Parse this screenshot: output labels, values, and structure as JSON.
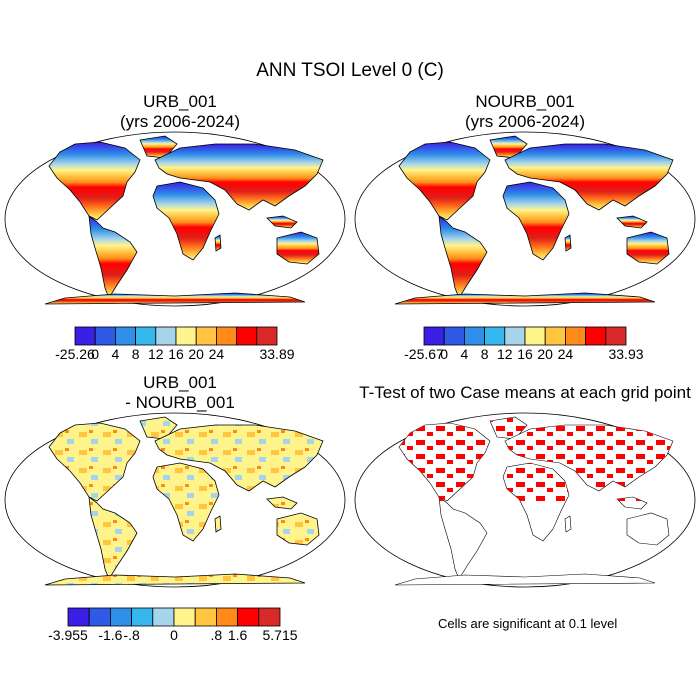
{
  "title": "ANN TSOI Level 0 (C)",
  "panels": [
    {
      "line1": "URB_001",
      "line2": "(yrs 2006-2024)"
    },
    {
      "line1": "NOURB_001",
      "line2": "(yrs 2006-2024)"
    },
    {
      "line1": "URB_001",
      "line2": "- NOURB_001"
    },
    {
      "line1": "T-Test of two Case means at each grid point",
      "line2": ""
    }
  ],
  "colorbars": [
    {
      "labels": [
        "-25.26",
        "0",
        "4",
        "8",
        "12",
        "16",
        "20",
        "24",
        "33.89"
      ],
      "colors": [
        "#3a1fe6",
        "#2f5ae6",
        "#2e8ee8",
        "#35b6ec",
        "#a6d4ea",
        "#fff48c",
        "#ffc440",
        "#ff8a1a",
        "#ff0000",
        "#d92a2a"
      ]
    },
    {
      "labels": [
        "-25.67",
        "0",
        "4",
        "8",
        "12",
        "16",
        "20",
        "24",
        "33.93"
      ],
      "colors": [
        "#3a1fe6",
        "#2f5ae6",
        "#2e8ee8",
        "#35b6ec",
        "#a6d4ea",
        "#fff48c",
        "#ffc440",
        "#ff8a1a",
        "#ff0000",
        "#d92a2a"
      ]
    },
    {
      "labels": [
        "-3.955",
        "-1.6",
        "-.8",
        "0",
        ".8",
        "1.6",
        "5.715"
      ],
      "colors": [
        "#3a1fe6",
        "#2f5ae6",
        "#2e8ee8",
        "#35b6ec",
        "#a6d4ea",
        "#fff48c",
        "#ffc440",
        "#ff8a1a",
        "#ff0000",
        "#d92a2a"
      ]
    }
  ],
  "significance_note": "Cells are significant at 0.1 level",
  "colors": {
    "significant": "#ff0000",
    "ocean": "#ffffff",
    "outline": "#000000"
  }
}
